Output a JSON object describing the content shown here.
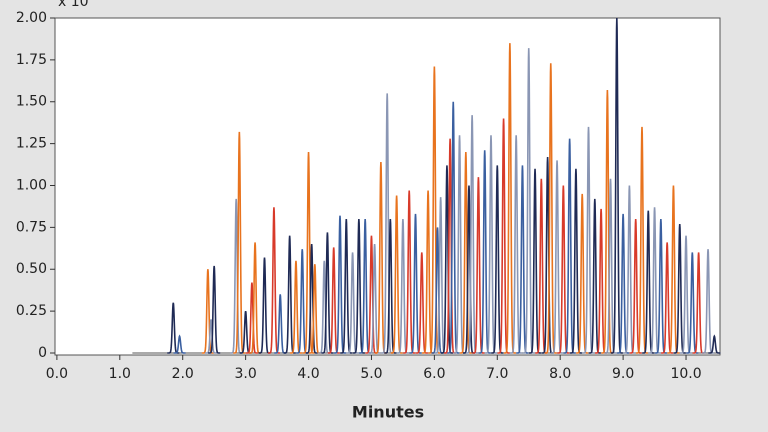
{
  "chart_data": {
    "type": "chromatogram",
    "axis_note": "x 10",
    "xlabel": "Minutes",
    "xlim": [
      -0.03,
      10.54
    ],
    "ylim": [
      -0.012,
      2.0
    ],
    "xticks": [
      {
        "value": 0,
        "label": "0.0"
      },
      {
        "value": 1,
        "label": "1.0"
      },
      {
        "value": 2,
        "label": "2.0"
      },
      {
        "value": 3,
        "label": "3.0"
      },
      {
        "value": 4,
        "label": "4.0"
      },
      {
        "value": 5,
        "label": "5.0"
      },
      {
        "value": 6,
        "label": "6.0"
      },
      {
        "value": 7,
        "label": "7.0"
      },
      {
        "value": 8,
        "label": "8.0"
      },
      {
        "value": 9,
        "label": "9.0"
      },
      {
        "value": 10,
        "label": "10.0"
      }
    ],
    "yticks": [
      0,
      0.25,
      {
        "value": 0.5,
        "label": "0.50"
      },
      0.75,
      {
        "value": 1,
        "label": "1.00"
      },
      1.25,
      {
        "value": 1.5,
        "label": "1.50"
      },
      1.75,
      {
        "value": 2,
        "label": "2.00"
      }
    ],
    "peaks": [
      {
        "time": 1.85,
        "height": 0.3,
        "color": "#1f2a55"
      },
      {
        "time": 1.95,
        "height": 0.1,
        "color": "#3a5fa0"
      },
      {
        "time": 2.4,
        "height": 0.5,
        "color": "#e8731e"
      },
      {
        "time": 2.45,
        "height": 0.2,
        "color": "#8a96b4"
      },
      {
        "time": 2.5,
        "height": 0.52,
        "color": "#1f2a55"
      },
      {
        "time": 2.85,
        "height": 0.92,
        "color": "#8a96b4"
      },
      {
        "time": 2.9,
        "height": 1.32,
        "color": "#e8731e"
      },
      {
        "time": 3.0,
        "height": 0.25,
        "color": "#1f2a55"
      },
      {
        "time": 3.1,
        "height": 0.42,
        "color": "#d83a2a"
      },
      {
        "time": 3.15,
        "height": 0.66,
        "color": "#e8731e"
      },
      {
        "time": 3.3,
        "height": 0.57,
        "color": "#1f2a55"
      },
      {
        "time": 3.45,
        "height": 0.87,
        "color": "#d83a2a"
      },
      {
        "time": 3.55,
        "height": 0.35,
        "color": "#3a5fa0"
      },
      {
        "time": 3.7,
        "height": 0.7,
        "color": "#1f2a55"
      },
      {
        "time": 3.8,
        "height": 0.55,
        "color": "#e8731e"
      },
      {
        "time": 3.9,
        "height": 0.62,
        "color": "#3a5fa0"
      },
      {
        "time": 4.0,
        "height": 1.2,
        "color": "#e8731e"
      },
      {
        "time": 4.05,
        "height": 0.65,
        "color": "#1f2a55"
      },
      {
        "time": 4.1,
        "height": 0.53,
        "color": "#e8731e"
      },
      {
        "time": 4.25,
        "height": 0.55,
        "color": "#8a96b4"
      },
      {
        "time": 4.3,
        "height": 0.72,
        "color": "#1f2a55"
      },
      {
        "time": 4.4,
        "height": 0.63,
        "color": "#d83a2a"
      },
      {
        "time": 4.5,
        "height": 0.82,
        "color": "#3a5fa0"
      },
      {
        "time": 4.6,
        "height": 0.8,
        "color": "#1f2a55"
      },
      {
        "time": 4.7,
        "height": 0.6,
        "color": "#8a96b4"
      },
      {
        "time": 4.8,
        "height": 0.8,
        "color": "#1f2a55"
      },
      {
        "time": 4.9,
        "height": 0.8,
        "color": "#3a5fa0"
      },
      {
        "time": 5.0,
        "height": 0.7,
        "color": "#d83a2a"
      },
      {
        "time": 5.05,
        "height": 0.65,
        "color": "#8a96b4"
      },
      {
        "time": 5.15,
        "height": 1.14,
        "color": "#e8731e"
      },
      {
        "time": 5.25,
        "height": 1.55,
        "color": "#8a96b4"
      },
      {
        "time": 5.3,
        "height": 0.8,
        "color": "#1f2a55"
      },
      {
        "time": 5.4,
        "height": 0.94,
        "color": "#e8731e"
      },
      {
        "time": 5.5,
        "height": 0.8,
        "color": "#8a96b4"
      },
      {
        "time": 5.6,
        "height": 0.97,
        "color": "#d83a2a"
      },
      {
        "time": 5.7,
        "height": 0.83,
        "color": "#3a5fa0"
      },
      {
        "time": 5.8,
        "height": 0.6,
        "color": "#d83a2a"
      },
      {
        "time": 5.9,
        "height": 0.97,
        "color": "#e8731e"
      },
      {
        "time": 6.0,
        "height": 1.71,
        "color": "#e8731e"
      },
      {
        "time": 6.05,
        "height": 0.75,
        "color": "#3a5fa0"
      },
      {
        "time": 6.1,
        "height": 0.93,
        "color": "#8a96b4"
      },
      {
        "time": 6.2,
        "height": 1.12,
        "color": "#1f2a55"
      },
      {
        "time": 6.25,
        "height": 1.28,
        "color": "#d83a2a"
      },
      {
        "time": 6.3,
        "height": 1.5,
        "color": "#3a5fa0"
      },
      {
        "time": 6.4,
        "height": 1.3,
        "color": "#8a96b4"
      },
      {
        "time": 6.5,
        "height": 1.2,
        "color": "#e8731e"
      },
      {
        "time": 6.55,
        "height": 1.0,
        "color": "#1f2a55"
      },
      {
        "time": 6.6,
        "height": 1.42,
        "color": "#8a96b4"
      },
      {
        "time": 6.7,
        "height": 1.05,
        "color": "#d83a2a"
      },
      {
        "time": 6.8,
        "height": 1.21,
        "color": "#3a5fa0"
      },
      {
        "time": 6.9,
        "height": 1.3,
        "color": "#8a96b4"
      },
      {
        "time": 7.0,
        "height": 1.12,
        "color": "#1f2a55"
      },
      {
        "time": 7.1,
        "height": 1.4,
        "color": "#d83a2a"
      },
      {
        "time": 7.2,
        "height": 1.85,
        "color": "#e8731e"
      },
      {
        "time": 7.3,
        "height": 1.3,
        "color": "#8a96b4"
      },
      {
        "time": 7.4,
        "height": 1.12,
        "color": "#3a5fa0"
      },
      {
        "time": 7.5,
        "height": 1.82,
        "color": "#8a96b4"
      },
      {
        "time": 7.6,
        "height": 1.1,
        "color": "#1f2a55"
      },
      {
        "time": 7.7,
        "height": 1.04,
        "color": "#d83a2a"
      },
      {
        "time": 7.8,
        "height": 1.17,
        "color": "#1f2a55"
      },
      {
        "time": 7.85,
        "height": 1.73,
        "color": "#e8731e"
      },
      {
        "time": 7.95,
        "height": 1.15,
        "color": "#8a96b4"
      },
      {
        "time": 8.05,
        "height": 1.0,
        "color": "#d83a2a"
      },
      {
        "time": 8.15,
        "height": 1.28,
        "color": "#3a5fa0"
      },
      {
        "time": 8.25,
        "height": 1.1,
        "color": "#1f2a55"
      },
      {
        "time": 8.35,
        "height": 0.95,
        "color": "#e8731e"
      },
      {
        "time": 8.45,
        "height": 1.35,
        "color": "#8a96b4"
      },
      {
        "time": 8.55,
        "height": 0.92,
        "color": "#1f2a55"
      },
      {
        "time": 8.65,
        "height": 0.86,
        "color": "#d83a2a"
      },
      {
        "time": 8.75,
        "height": 1.57,
        "color": "#e8731e"
      },
      {
        "time": 8.8,
        "height": 1.04,
        "color": "#8a96b4"
      },
      {
        "time": 8.9,
        "height": 2.0,
        "color": "#1f2a55"
      },
      {
        "time": 9.0,
        "height": 0.83,
        "color": "#3a5fa0"
      },
      {
        "time": 9.1,
        "height": 1.0,
        "color": "#8a96b4"
      },
      {
        "time": 9.2,
        "height": 0.8,
        "color": "#d83a2a"
      },
      {
        "time": 9.3,
        "height": 1.35,
        "color": "#e8731e"
      },
      {
        "time": 9.4,
        "height": 0.85,
        "color": "#1f2a55"
      },
      {
        "time": 9.5,
        "height": 0.87,
        "color": "#8a96b4"
      },
      {
        "time": 9.6,
        "height": 0.8,
        "color": "#3a5fa0"
      },
      {
        "time": 9.7,
        "height": 0.66,
        "color": "#d83a2a"
      },
      {
        "time": 9.8,
        "height": 1.0,
        "color": "#e8731e"
      },
      {
        "time": 9.9,
        "height": 0.77,
        "color": "#1f2a55"
      },
      {
        "time": 10.0,
        "height": 0.7,
        "color": "#8a96b4"
      },
      {
        "time": 10.1,
        "height": 0.6,
        "color": "#3a5fa0"
      },
      {
        "time": 10.2,
        "height": 0.6,
        "color": "#d83a2a"
      },
      {
        "time": 10.35,
        "height": 0.62,
        "color": "#8a96b4"
      },
      {
        "time": 10.45,
        "height": 0.1,
        "color": "#1f2a55"
      }
    ]
  }
}
